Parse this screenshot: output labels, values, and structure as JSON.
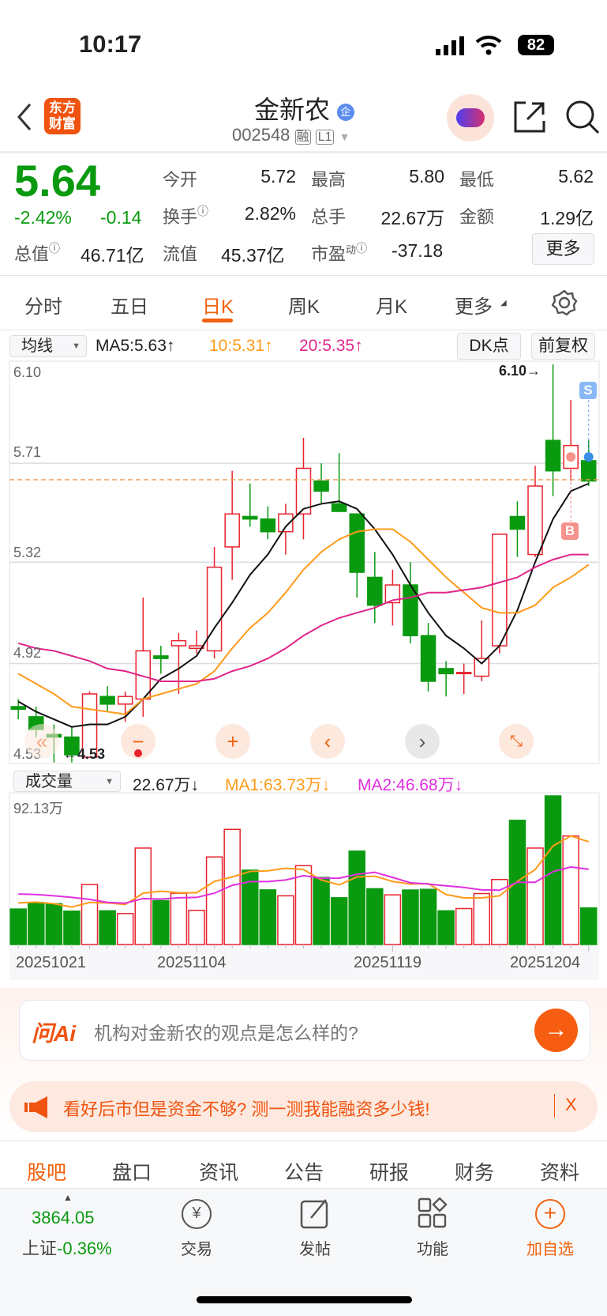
{
  "status": {
    "time": "10:17",
    "battery": "82"
  },
  "header": {
    "logo": "东方财富",
    "title": "金新农",
    "ent_badge": "企",
    "code": "002548",
    "badge_margin": "融",
    "badge_level": "L1",
    "icons": [
      "back-icon",
      "assistant-avatar",
      "share-icon",
      "search-icon"
    ]
  },
  "quote": {
    "price": "5.64",
    "change_pct": "-2.42%",
    "change": "-0.14",
    "rows": [
      [
        {
          "label": "今开",
          "value": "5.72",
          "color": "green"
        },
        {
          "label": "最高",
          "value": "5.80",
          "color": "red"
        },
        {
          "label": "最低",
          "value": "5.62",
          "color": "green"
        }
      ],
      [
        {
          "label": "换手",
          "value": "2.82%"
        },
        {
          "label": "总手",
          "value": "22.67万"
        },
        {
          "label": "金额",
          "value": "1.29亿"
        }
      ]
    ],
    "mktcap_label": "总值",
    "mktcap": "46.71亿",
    "float_label": "流值",
    "float": "45.37亿",
    "pe_label": "市盈",
    "pe_sup": "动",
    "pe": "-37.18",
    "more": "更多"
  },
  "tabs": {
    "items": [
      "分时",
      "五日",
      "日K",
      "周K",
      "月K",
      "更多"
    ],
    "active": 2
  },
  "kline": {
    "indicator": "均线",
    "ma5": "MA5:5.63↑",
    "ma10": "10:5.31↑",
    "ma20": "20:5.35↑",
    "dk": "DK点",
    "adjust": "前复权",
    "price_labels": [
      "6.10",
      "5.71",
      "5.32",
      "4.92",
      "4.53"
    ],
    "high_mark": "6.10→",
    "low_mark": "←4.53",
    "sell": "S",
    "buy": "B"
  },
  "volume": {
    "indicator": "成交量",
    "vol": "22.67万↓",
    "ma1": "MA1:63.73万↓",
    "ma2": "MA2:46.68万↓",
    "max_label": "92.13万",
    "dates": [
      "20251021",
      "20251104",
      "20251119",
      "20251204"
    ]
  },
  "ai": {
    "logo": "问Ai",
    "prompt": "机构对金新农的观点是怎么样的?"
  },
  "promo": {
    "text": "看好后市但是资金不够? 测一测我能融资多少钱!",
    "close": "X"
  },
  "bottom_tabs": {
    "items": [
      "股吧",
      "盘口",
      "资讯",
      "公告",
      "研报",
      "财务",
      "资料"
    ],
    "active": 0
  },
  "nav": {
    "index_value": "3864.05",
    "index_name": "上证",
    "index_change": "-0.36%",
    "items": [
      "交易",
      "发帖",
      "功能",
      "加自选"
    ]
  },
  "colors": {
    "up": "#e8222c",
    "down": "#0a9a10",
    "ma5": "#111111",
    "ma10": "#ff9a1a",
    "ma20": "#e0258a",
    "accent": "#f0620f"
  },
  "chart_data": {
    "type": "candlestick",
    "ylim": [
      4.53,
      6.1
    ],
    "dates_shown": [
      "20251021",
      "20251104",
      "20251119",
      "20251204"
    ],
    "ohlc": [
      [
        4.75,
        4.78,
        4.7,
        4.74
      ],
      [
        4.71,
        4.75,
        4.63,
        4.66
      ],
      [
        4.64,
        4.68,
        4.53,
        4.63
      ],
      [
        4.63,
        4.67,
        4.53,
        4.56
      ],
      [
        4.55,
        4.81,
        4.55,
        4.8
      ],
      [
        4.79,
        4.83,
        4.73,
        4.76
      ],
      [
        4.76,
        4.81,
        4.69,
        4.79
      ],
      [
        4.78,
        5.18,
        4.71,
        4.97
      ],
      [
        4.95,
        4.99,
        4.88,
        4.94
      ],
      [
        4.99,
        5.04,
        4.8,
        5.01
      ],
      [
        4.98,
        5.05,
        4.96,
        4.99
      ],
      [
        4.97,
        5.38,
        4.94,
        5.3
      ],
      [
        5.38,
        5.68,
        5.25,
        5.51
      ],
      [
        5.5,
        5.63,
        5.46,
        5.49
      ],
      [
        5.49,
        5.54,
        5.41,
        5.44
      ],
      [
        5.44,
        5.55,
        5.35,
        5.51
      ],
      [
        5.51,
        5.81,
        5.41,
        5.69
      ],
      [
        5.64,
        5.71,
        5.55,
        5.6
      ],
      [
        5.55,
        5.75,
        5.52,
        5.52
      ],
      [
        5.51,
        5.51,
        5.18,
        5.28
      ],
      [
        5.26,
        5.36,
        5.08,
        5.15
      ],
      [
        5.16,
        5.29,
        5.07,
        5.23
      ],
      [
        5.23,
        5.32,
        5.0,
        5.03
      ],
      [
        5.03,
        5.08,
        4.81,
        4.85
      ],
      [
        4.9,
        4.93,
        4.79,
        4.88
      ],
      [
        4.88,
        4.92,
        4.8,
        4.885
      ],
      [
        4.87,
        5.09,
        4.85,
        4.94
      ],
      [
        4.99,
        5.43,
        4.96,
        5.43
      ],
      [
        5.5,
        5.56,
        5.34,
        5.45
      ],
      [
        5.35,
        5.7,
        5.34,
        5.62
      ],
      [
        5.8,
        6.1,
        5.58,
        5.68
      ],
      [
        5.69,
        5.96,
        5.64,
        5.78
      ],
      [
        5.72,
        5.8,
        5.62,
        5.64
      ]
    ],
    "ma5": [
      4.77,
      4.73,
      4.7,
      4.67,
      4.68,
      4.68,
      4.71,
      4.78,
      4.86,
      4.9,
      4.95,
      5.06,
      5.16,
      5.27,
      5.35,
      5.46,
      5.53,
      5.55,
      5.56,
      5.53,
      5.45,
      5.35,
      5.23,
      5.12,
      5.03,
      4.98,
      4.92,
      4.99,
      5.13,
      5.32,
      5.49,
      5.6,
      5.63
    ],
    "ma10": [
      4.88,
      4.84,
      4.8,
      4.75,
      4.74,
      4.73,
      4.72,
      4.78,
      4.8,
      4.82,
      4.84,
      4.89,
      4.98,
      5.06,
      5.12,
      5.2,
      5.29,
      5.36,
      5.41,
      5.44,
      5.45,
      5.45,
      5.4,
      5.33,
      5.26,
      5.2,
      5.14,
      5.12,
      5.12,
      5.15,
      5.22,
      5.26,
      5.31
    ],
    "ma20": [
      5.0,
      4.98,
      4.97,
      4.95,
      4.93,
      4.9,
      4.89,
      4.87,
      4.85,
      4.85,
      4.85,
      4.86,
      4.89,
      4.91,
      4.94,
      4.98,
      5.03,
      5.07,
      5.1,
      5.12,
      5.14,
      5.17,
      5.18,
      5.2,
      5.2,
      5.21,
      5.22,
      5.24,
      5.26,
      5.3,
      5.33,
      5.35,
      5.35
    ],
    "volume_ylim": [
      0,
      92.13
    ],
    "volume": [
      22.0,
      26.1,
      25.3,
      20.7,
      37.2,
      20.9,
      19.2,
      59.8,
      27.2,
      31.8,
      21.2,
      54.3,
      71.4,
      46.1,
      33.9,
      30.2,
      48.9,
      41.6,
      29.0,
      57.9,
      34.6,
      30.8,
      33.8,
      34.2,
      20.9,
      22.3,
      31.6,
      40.3,
      77.0,
      59.8,
      92.13,
      67.3,
      22.67
    ],
    "vol_ma1": [
      25.8,
      26.3,
      25.3,
      23.2,
      26.1,
      25.8,
      24.8,
      31.8,
      33.1,
      32.1,
      32.1,
      39.1,
      41.9,
      45.3,
      45.7,
      47.3,
      46.5,
      40.0,
      37.0,
      41.9,
      42.4,
      39.1,
      37.5,
      37.8,
      31.0,
      28.9,
      28.9,
      30.2,
      39.1,
      46.5,
      61.1,
      67.3,
      63.73
    ],
    "vol_ma2": [
      31.3,
      31.0,
      30.2,
      29.2,
      28.0,
      26.1,
      25.6,
      28.5,
      28.2,
      29.0,
      29.2,
      31.8,
      36.7,
      39.0,
      39.0,
      40.0,
      42.7,
      41.1,
      41.1,
      43.5,
      44.8,
      41.6,
      38.3,
      37.5,
      36.4,
      35.4,
      33.9,
      33.7,
      38.6,
      38.6,
      45.2,
      48.1,
      46.68
    ]
  }
}
